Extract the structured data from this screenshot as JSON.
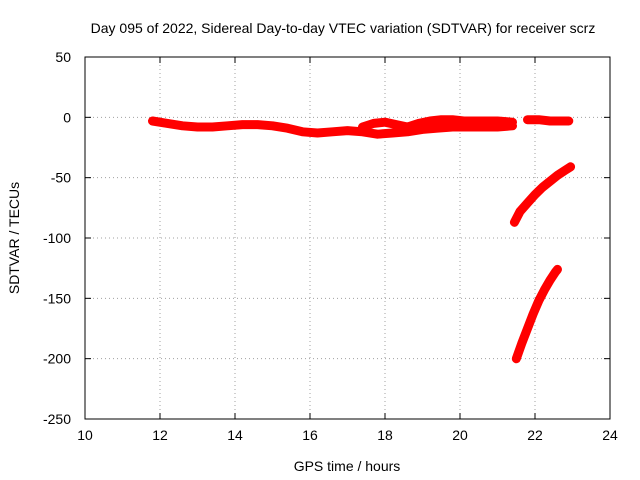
{
  "chart_data": {
    "type": "scatter",
    "title": "Day 095 of 2022, Sidereal Day-to-day VTEC variation (SDTVAR) for receiver scrz",
    "xlabel": "GPS time / hours",
    "ylabel": "SDTVAR / TECUs",
    "xlim": [
      10,
      24
    ],
    "ylim": [
      -250,
      50
    ],
    "xticks": [
      "10",
      "12",
      "14",
      "16",
      "18",
      "20",
      "22",
      "24"
    ],
    "yticks": [
      "50",
      "0",
      "-50",
      "-100",
      "-150",
      "-200",
      "-250"
    ],
    "grid": true,
    "legend": "none",
    "series": [
      {
        "color": "#ff0000",
        "x": [
          11.8,
          12.2,
          12.6,
          13.0,
          13.4,
          13.8,
          14.2,
          14.6,
          15.0,
          15.4,
          15.8,
          16.2,
          16.6,
          17.0,
          17.4,
          17.8,
          18.2,
          18.6,
          19.0,
          19.4,
          19.8,
          20.2,
          20.6,
          21.0,
          21.4
        ],
        "y": [
          -3,
          -5,
          -7,
          -8,
          -8,
          -7,
          -6,
          -6,
          -7,
          -9,
          -12,
          -13,
          -12,
          -11,
          -12,
          -14,
          -13,
          -12,
          -10,
          -9,
          -8,
          -8,
          -8,
          -8,
          -7
        ]
      },
      {
        "color": "#ff0000",
        "x": [
          17.4,
          17.7,
          18.0,
          18.3,
          18.6,
          18.9,
          19.2,
          19.5,
          19.8,
          20.1,
          20.4,
          20.7,
          21.0,
          21.4
        ],
        "y": [
          -8,
          -5,
          -4,
          -6,
          -8,
          -5,
          -3,
          -2,
          -2,
          -3,
          -3,
          -3,
          -3,
          -4
        ]
      },
      {
        "color": "#ff0000",
        "x": [
          21.8,
          22.1,
          22.4,
          22.7,
          22.9
        ],
        "y": [
          -2,
          -2,
          -3,
          -3,
          -3
        ]
      },
      {
        "color": "#ff0000",
        "x": [
          21.45,
          21.6,
          21.8,
          22.0,
          22.2,
          22.4,
          22.6,
          22.8,
          22.95
        ],
        "y": [
          -87,
          -78,
          -71,
          -64,
          -58,
          -53,
          -48,
          -44,
          -41
        ]
      },
      {
        "color": "#ff0000",
        "x": [
          21.5,
          21.65,
          21.8,
          21.95,
          22.1,
          22.25,
          22.4,
          22.55,
          22.6
        ],
        "y": [
          -200,
          -187,
          -175,
          -163,
          -152,
          -143,
          -135,
          -128,
          -126
        ]
      }
    ]
  }
}
